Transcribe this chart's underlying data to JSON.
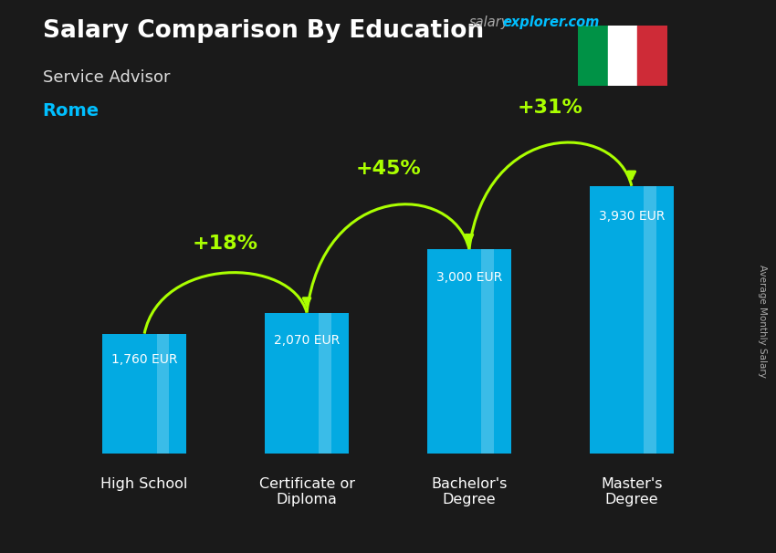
{
  "title": "Salary Comparison By Education",
  "subtitle": "Service Advisor",
  "city": "Rome",
  "ylabel": "Average Monthly Salary",
  "categories": [
    "High School",
    "Certificate or\nDiploma",
    "Bachelor's\nDegree",
    "Master's\nDegree"
  ],
  "values": [
    1760,
    2070,
    3000,
    3930
  ],
  "bar_color": "#00bfff",
  "pct_labels": [
    "+18%",
    "+45%",
    "+31%"
  ],
  "value_labels": [
    "1,760 EUR",
    "2,070 EUR",
    "3,000 EUR",
    "3,930 EUR"
  ],
  "pct_color": "#aaff00",
  "background_color": "#1a1a1a",
  "title_color": "#ffffff",
  "subtitle_color": "#dddddd",
  "city_color": "#00bfff",
  "ylabel_color": "#aaaaaa",
  "xtick_color": "#ffffff",
  "value_label_color": "#ffffff",
  "brand_salary_color": "#aaaaaa",
  "brand_explorer_color": "#00bfff",
  "ylim": [
    0,
    5200
  ],
  "bar_width": 0.52,
  "italy_flag_green": "#009246",
  "italy_flag_white": "#ffffff",
  "italy_flag_red": "#ce2b37",
  "arc_peaks": [
    2800,
    4000,
    4900
  ],
  "arc_peak_offsets": [
    300,
    350,
    400
  ]
}
